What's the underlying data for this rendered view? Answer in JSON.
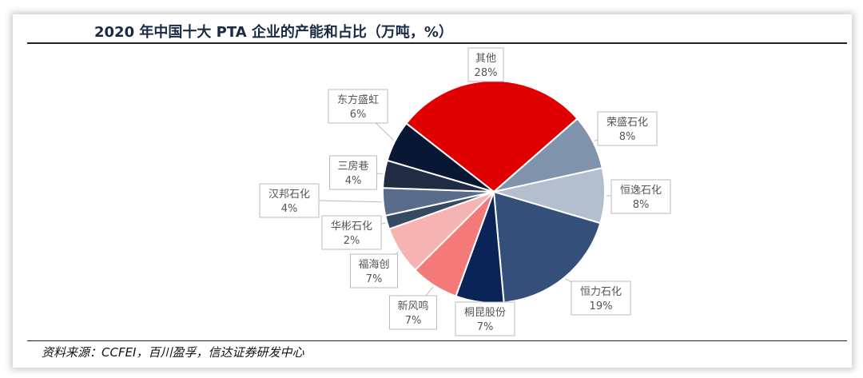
{
  "title": "2020 年中国十大 PTA 企业的产能和占比（万吨，%）",
  "source": "资料来源：CCFEI，百川盈孚，信达证券研发中心",
  "chart_data": {
    "type": "pie",
    "title": "2020 年中国十大 PTA 企业的产能和占比（万吨，%）",
    "categories": [
      "其他",
      "荣盛石化",
      "恒逸石化",
      "恒力石化",
      "桐昆股份",
      "新风鸣",
      "福海创",
      "华彬石化",
      "汉邦石化",
      "三房巷",
      "东方盛虹"
    ],
    "values": [
      28,
      8,
      8,
      19,
      7,
      7,
      7,
      2,
      4,
      4,
      6
    ],
    "labels": [
      "28%",
      "8%",
      "8%",
      "19%",
      "7%",
      "7%",
      "7%",
      "2%",
      "4%",
      "4%",
      "6%"
    ],
    "colors": [
      "#e00000",
      "#8093ad",
      "#b3bfcf",
      "#34507a",
      "#0b2458",
      "#f47a7a",
      "#f7b2b2",
      "#374862",
      "#5a6c8b",
      "#1f2c44",
      "#081733"
    ],
    "legend": "none"
  }
}
